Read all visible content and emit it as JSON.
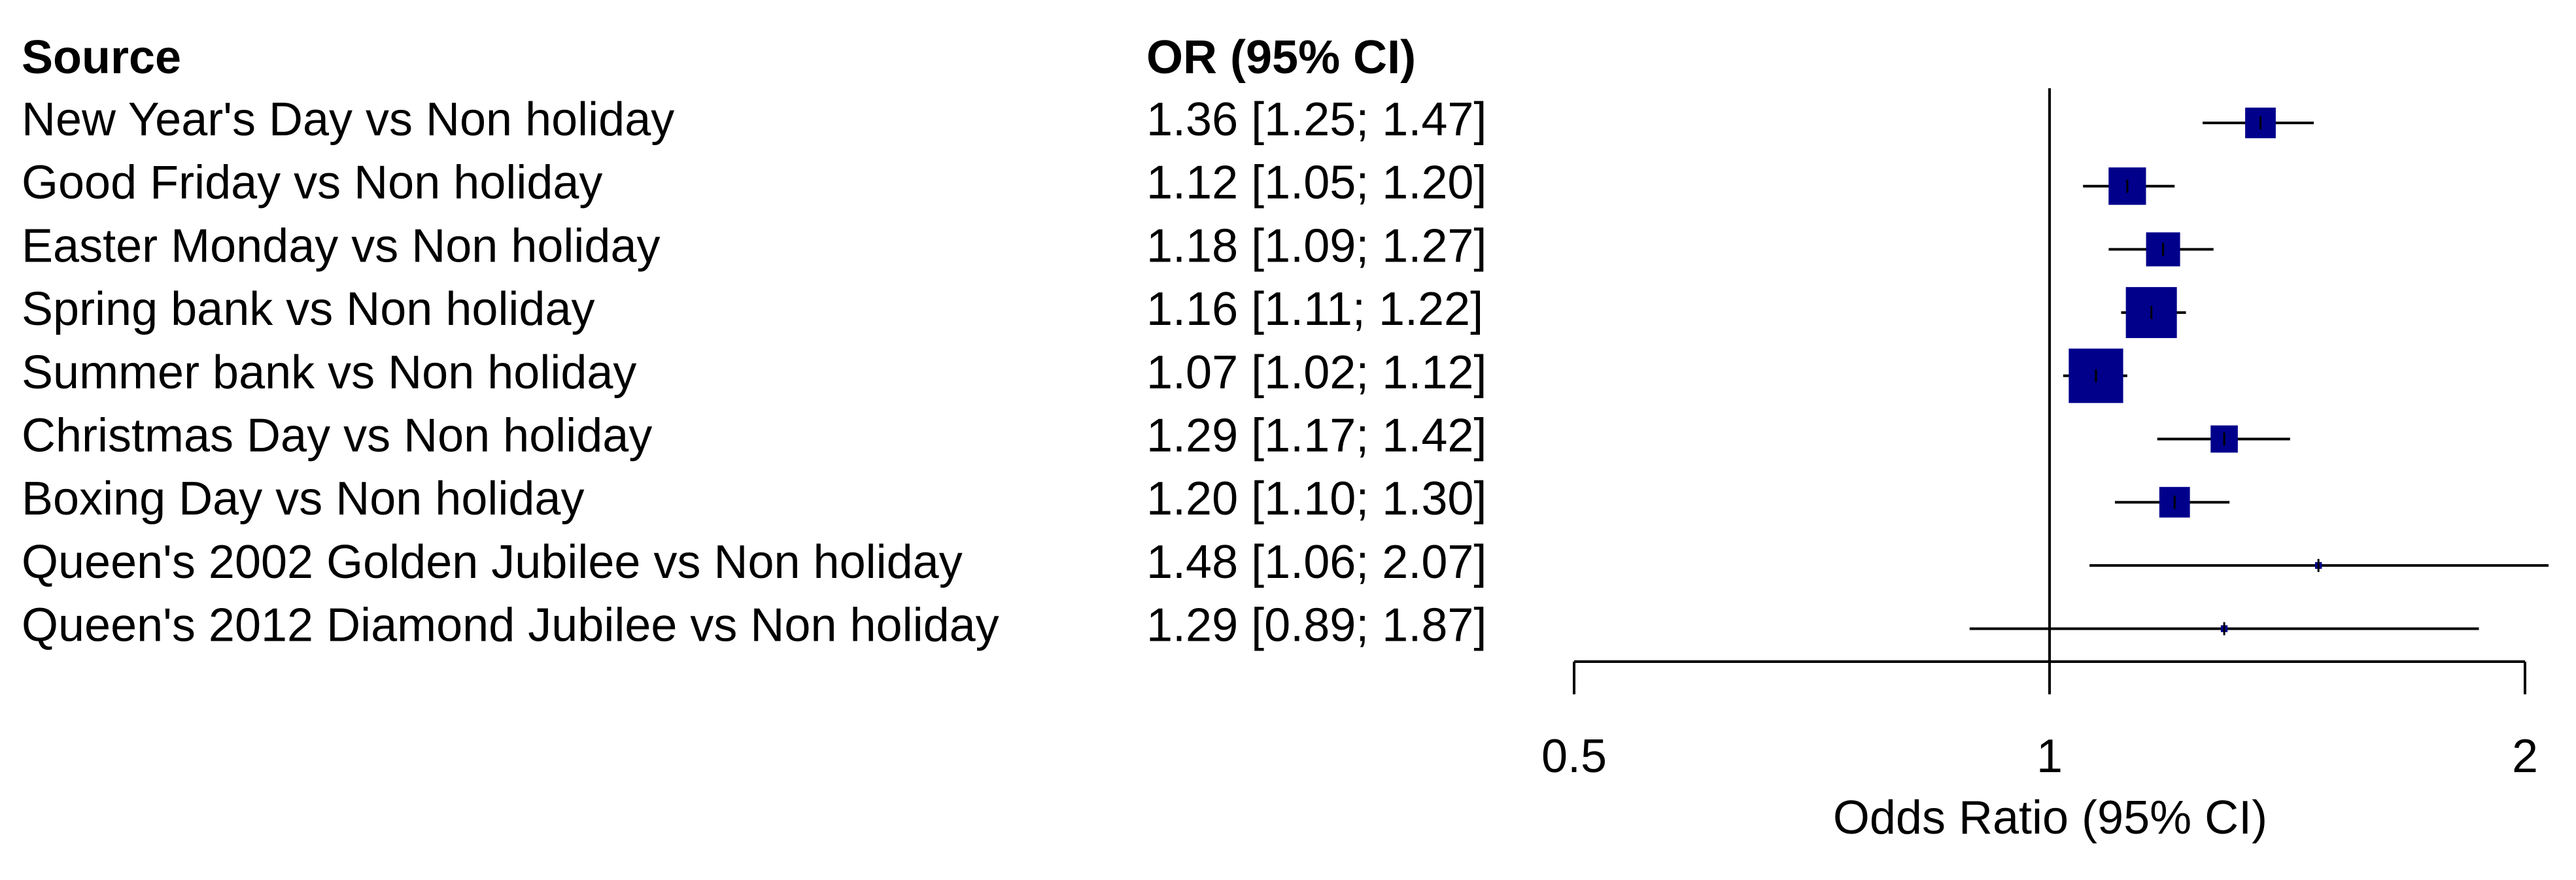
{
  "chart_data": {
    "type": "forest",
    "source_header": "Source",
    "value_header": "OR (95% CI)",
    "xlabel": "Odds Ratio (95% CI)",
    "categories": [
      "New Year's Day vs Non holiday",
      "Good Friday vs Non holiday",
      "Easter Monday vs Non holiday",
      "Spring bank vs Non holiday",
      "Summer bank vs Non holiday",
      "Christmas Day vs Non holiday",
      "Boxing Day vs Non holiday",
      "Queen's 2002 Golden Jubilee vs Non holiday",
      "Queen's 2012 Diamond Jubilee vs Non holiday"
    ],
    "values": [
      1.36,
      1.12,
      1.18,
      1.16,
      1.07,
      1.29,
      1.2,
      1.48,
      1.29
    ],
    "lower": [
      1.25,
      1.05,
      1.09,
      1.11,
      1.02,
      1.17,
      1.1,
      1.06,
      0.89
    ],
    "upper": [
      1.47,
      1.2,
      1.27,
      1.22,
      1.12,
      1.42,
      1.3,
      2.07,
      1.87
    ],
    "value_labels": [
      "1.36 [1.25; 1.47]",
      "1.12 [1.05; 1.20]",
      "1.18 [1.09; 1.27]",
      "1.16 [1.11; 1.22]",
      "1.07 [1.02; 1.12]",
      "1.29 [1.17; 1.42]",
      "1.20 [1.10; 1.30]",
      "1.48 [1.06; 2.07]",
      "1.29 [0.89; 1.87]"
    ],
    "weights": [
      9,
      11,
      10,
      15,
      16,
      8,
      9,
      2,
      2
    ],
    "color": "#00008b",
    "xlim": [
      0.5,
      2
    ],
    "xticks": [
      0.5,
      1,
      2
    ],
    "log_x": true,
    "reference": 1
  }
}
